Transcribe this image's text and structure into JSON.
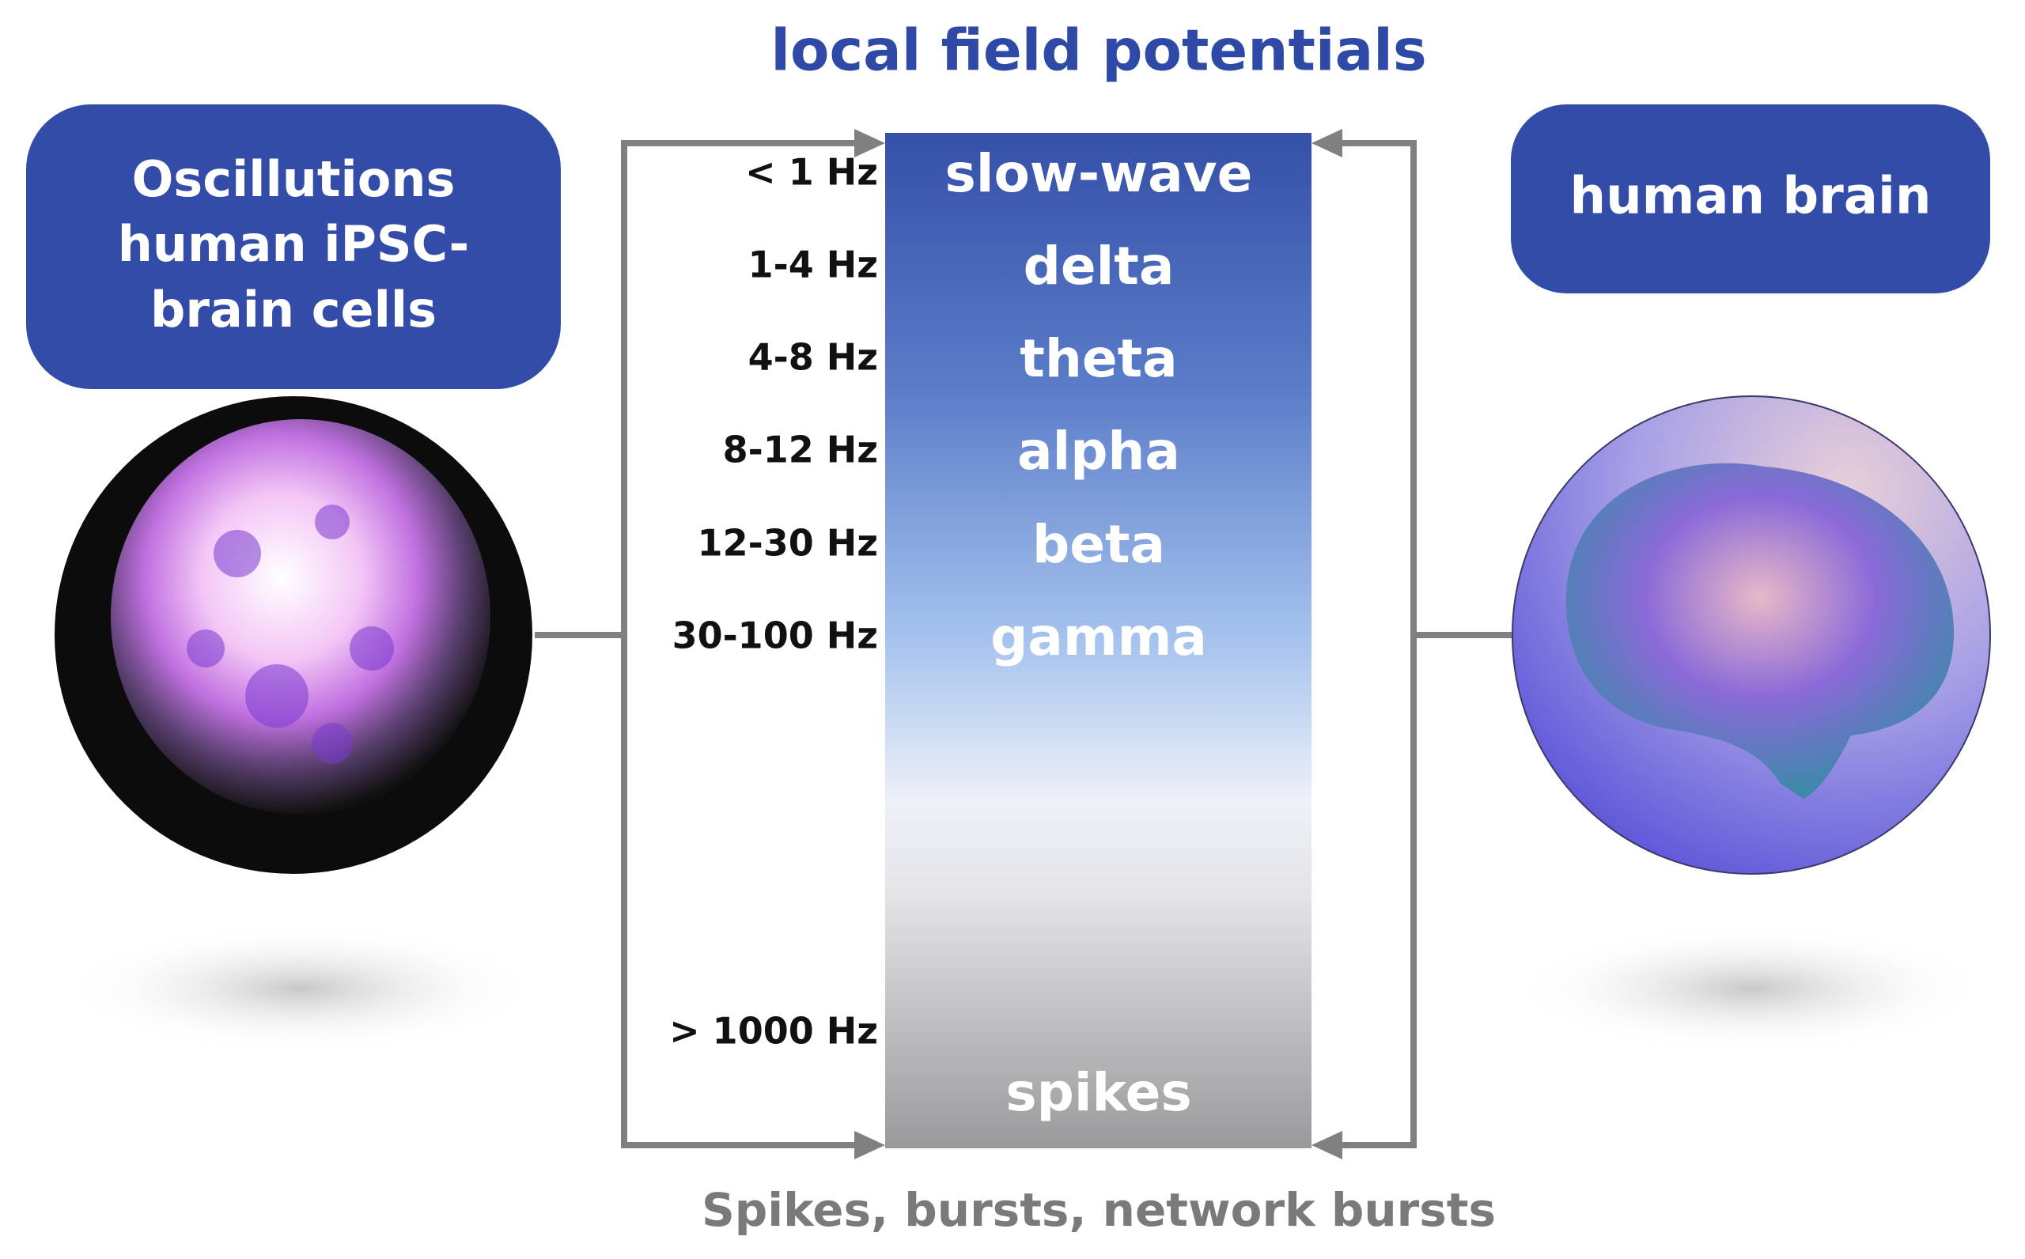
{
  "title": "local field potentials",
  "left_box": {
    "lines": [
      "Oscillutions",
      "human iPSC-",
      "brain cells"
    ]
  },
  "right_box": {
    "label": "human brain"
  },
  "bands": [
    {
      "frequency": "< 1 Hz",
      "name": "slow-wave"
    },
    {
      "frequency": "1-4 Hz",
      "name": "delta"
    },
    {
      "frequency": "4-8 Hz",
      "name": "theta"
    },
    {
      "frequency": "8-12 Hz",
      "name": "alpha"
    },
    {
      "frequency": "12-30 Hz",
      "name": "beta"
    },
    {
      "frequency": "30-100 Hz",
      "name": "gamma"
    }
  ],
  "spikes": {
    "frequency": "> 1000 Hz",
    "name": "spikes"
  },
  "footer": "Spikes, bursts, network bursts"
}
